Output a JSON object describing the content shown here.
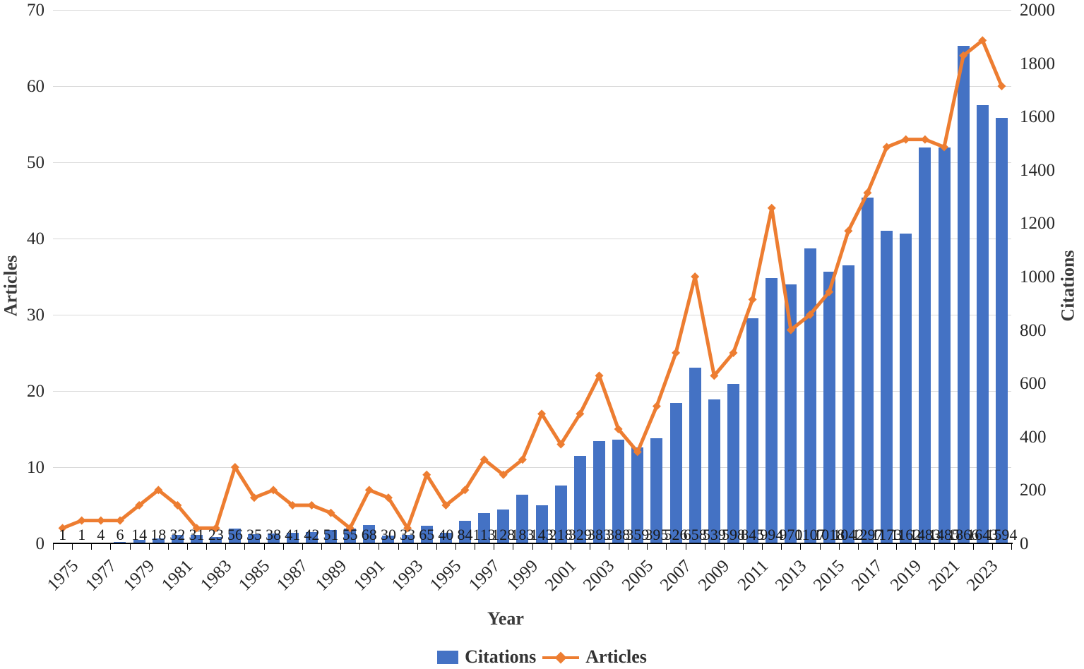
{
  "chart_data": {
    "type": "combo-bar-line-dual-axis",
    "title": "",
    "xlabel": "Year",
    "ylabel_left": "Articles",
    "ylabel_right": "Citations",
    "ylim_left": [
      0,
      70
    ],
    "ylim_right": [
      0,
      2000
    ],
    "yticks_left": [
      0,
      10,
      20,
      30,
      40,
      50,
      60,
      70
    ],
    "yticks_right": [
      0,
      200,
      400,
      600,
      800,
      1000,
      1200,
      1400,
      1600,
      1800,
      2000
    ],
    "grid": true,
    "legend_position": "bottom",
    "categories": [
      1975,
      1976,
      1977,
      1978,
      1979,
      1980,
      1981,
      1982,
      1983,
      1984,
      1985,
      1986,
      1987,
      1988,
      1989,
      1990,
      1991,
      1992,
      1993,
      1994,
      1995,
      1996,
      1997,
      1998,
      1999,
      2000,
      2001,
      2002,
      2003,
      2004,
      2005,
      2006,
      2007,
      2008,
      2009,
      2010,
      2011,
      2012,
      2013,
      2014,
      2015,
      2016,
      2017,
      2018,
      2019,
      2020,
      2021,
      2022,
      2023,
      2024
    ],
    "xtick_labels": [
      1975,
      1977,
      1979,
      1981,
      1983,
      1985,
      1987,
      1989,
      1991,
      1993,
      1995,
      1997,
      1999,
      2001,
      2003,
      2005,
      2007,
      2009,
      2011,
      2013,
      2015,
      2017,
      2019,
      2021,
      2023
    ],
    "series": [
      {
        "name": "Citations",
        "type": "bar",
        "axis": "right",
        "color": "#4472C4",
        "data_labels_shown": true,
        "values": [
          1,
          1,
          4,
          6,
          14,
          18,
          32,
          31,
          23,
          56,
          35,
          38,
          41,
          42,
          51,
          55,
          68,
          30,
          33,
          65,
          40,
          84,
          113,
          128,
          183,
          143,
          218,
          329,
          383,
          388,
          359,
          395,
          526,
          658,
          539,
          598,
          845,
          994,
          970,
          1107,
          1018,
          1042,
          1297,
          1173,
          1162,
          1483,
          1485,
          1866,
          1643,
          1594
        ]
      },
      {
        "name": "Articles",
        "type": "line",
        "axis": "left",
        "color": "#ED7D31",
        "marker": "diamond",
        "data_labels_shown": false,
        "values": [
          2,
          3,
          3,
          3,
          5,
          7,
          5,
          2,
          2,
          10,
          6,
          7,
          5,
          5,
          4,
          2,
          7,
          6,
          2,
          9,
          5,
          7,
          11,
          9,
          11,
          17,
          13,
          17,
          22,
          15,
          12,
          18,
          25,
          35,
          22,
          25,
          32,
          44,
          28,
          30,
          33,
          41,
          46,
          52,
          53,
          53,
          52,
          64,
          66,
          60
        ]
      }
    ],
    "colors": {
      "bar": "#4472C4",
      "line": "#ED7D31",
      "gridline": "#d9d9d9",
      "axis_text": "#262626"
    }
  },
  "axes": {
    "left_title": "Articles",
    "right_title": "Citations",
    "x_title": "Year"
  },
  "legend": {
    "citations_label": "Citations",
    "articles_label": "Articles"
  }
}
